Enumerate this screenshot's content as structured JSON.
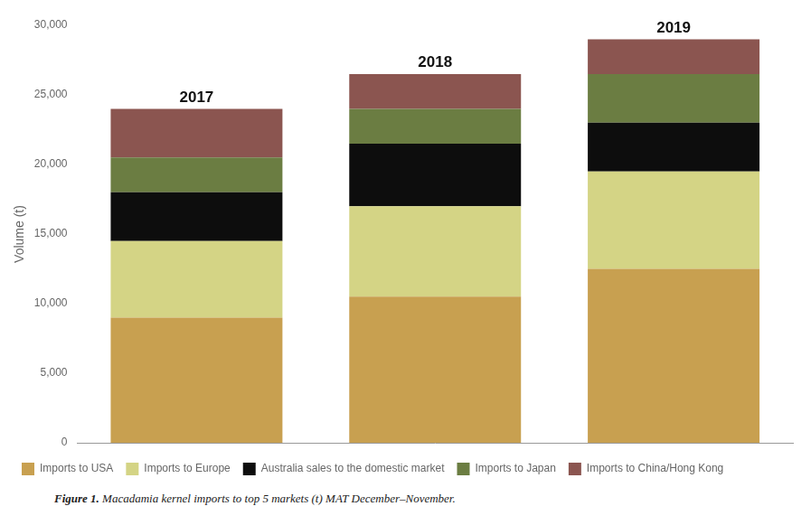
{
  "chart_data": {
    "type": "bar",
    "stacked": true,
    "categories": [
      "2017",
      "2018",
      "2019"
    ],
    "series": [
      {
        "name": "Imports to USA",
        "color": "#C8A050",
        "values": [
          9000,
          10500,
          12500
        ]
      },
      {
        "name": "Imports to Europe",
        "color": "#D4D485",
        "values": [
          5500,
          6500,
          7000
        ]
      },
      {
        "name": "Australia sales to the domestic market",
        "color": "#0D0D0D",
        "values": [
          3500,
          4500,
          3500
        ]
      },
      {
        "name": "Imports to Japan",
        "color": "#6B7D42",
        "values": [
          2500,
          2500,
          3500
        ]
      },
      {
        "name": "Imports to China/Hong Kong",
        "color": "#8B5550",
        "values": [
          3500,
          2500,
          2500
        ]
      }
    ],
    "ylabel": "Volume (t)",
    "ylim": [
      0,
      30000
    ],
    "yticks": [
      0,
      {
        "value": 5000,
        "label": "5,000"
      },
      {
        "value": 10000,
        "label": "10,000"
      },
      {
        "value": 15000,
        "label": "15,000"
      },
      {
        "value": 20000,
        "label": "20,000"
      },
      {
        "value": 25000,
        "label": "25,000"
      },
      {
        "value": 30000,
        "label": "30,000"
      }
    ],
    "grid": false,
    "legend": "bottom",
    "tick_labels": "y",
    "caption": "Figure 1. Macadamia kernel imports to top 5 markets (t) MAT December–November."
  }
}
